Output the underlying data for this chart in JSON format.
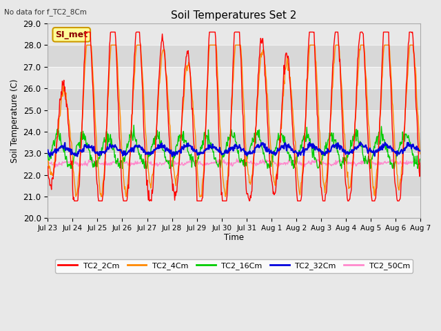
{
  "title": "Soil Temperatures Set 2",
  "annotation": "No data for f_TC2_8Cm",
  "ylabel": "Soil Temperature (C)",
  "xlabel": "Time",
  "ylim": [
    20.0,
    29.0
  ],
  "yticks": [
    20.0,
    21.0,
    22.0,
    23.0,
    24.0,
    25.0,
    26.0,
    27.0,
    28.0,
    29.0
  ],
  "xtick_labels": [
    "Jul 23",
    "Jul 24",
    "Jul 25",
    "Jul 26",
    "Jul 27",
    "Jul 28",
    "Jul 29",
    "Jul 30",
    "Jul 31",
    "Aug 1",
    "Aug 2",
    "Aug 3",
    "Aug 4",
    "Aug 5",
    "Aug 6",
    "Aug 7"
  ],
  "legend_entries": [
    "TC2_2Cm",
    "TC2_4Cm",
    "TC2_16Cm",
    "TC2_32Cm",
    "TC2_50Cm"
  ],
  "line_colors": [
    "#ff0000",
    "#ff8800",
    "#00cc00",
    "#0000dd",
    "#ff88cc"
  ],
  "si_met_label": "SI_met",
  "fig_bg_color": "#e8e8e8",
  "plot_bg_color": "#e0e0e0",
  "band_colors": [
    "#e8e8e8",
    "#d8d8d8"
  ]
}
